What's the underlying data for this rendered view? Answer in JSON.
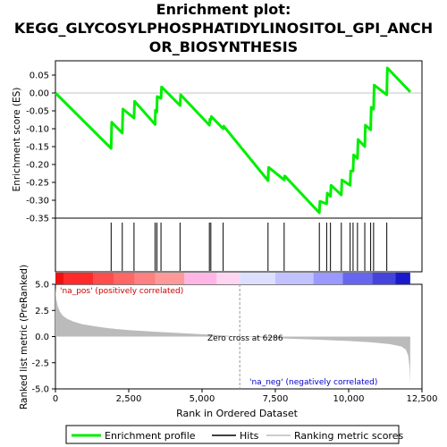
{
  "title_lines": [
    "Enrichment plot:",
    "KEGG_GLYCOSYLPHOSPHATIDYLINOSITOL_GPI_ANCH",
    "OR_BIOSYNTHESIS"
  ],
  "colors": {
    "enrichment_line": "#00ee00",
    "hit_line": "#000000",
    "ranking_fill": "#bbbbbb",
    "zero_cross_line": "#999999",
    "pos_label": "#cc0000",
    "neg_label": "#0000cc"
  },
  "chart_data": {
    "type": "line",
    "title": "Enrichment plot: KEGG_GLYCOSYLPHOSPHATIDYLINOSITOL_GPI_ANCHOR_BIOSYNTHESIS",
    "xlabel": "Rank in Ordered Dataset",
    "xlim": [
      0,
      12500
    ],
    "x_ticks": [
      0,
      2500,
      5000,
      7500,
      10000,
      12500
    ],
    "x_tick_labels": [
      "0",
      "2,500",
      "5,000",
      "7,500",
      "10,000",
      "12,500"
    ],
    "top_panel": {
      "ylabel": "Enrichment score (ES)",
      "ylim": [
        -0.35,
        0.09
      ],
      "y_ticks": [
        0.05,
        0.0,
        -0.05,
        -0.1,
        -0.15,
        -0.2,
        -0.25,
        -0.3,
        -0.35
      ],
      "y_tick_labels": [
        "0.05",
        "0.00",
        "-0.05",
        "-0.10",
        "-0.15",
        "-0.20",
        "-0.25",
        "-0.30",
        "-0.35"
      ],
      "series": [
        {
          "name": "Enrichment profile",
          "x": [
            0,
            1900,
            1920,
            2280,
            2300,
            2680,
            2700,
            3400,
            3410,
            3460,
            3470,
            3600,
            3620,
            4250,
            4270,
            5250,
            5270,
            5300,
            5320,
            5720,
            5740,
            7250,
            7270,
            7800,
            7820,
            9000,
            9020,
            9250,
            9270,
            9380,
            9400,
            9750,
            9770,
            10050,
            10070,
            10150,
            10170,
            10300,
            10320,
            10550,
            10570,
            10750,
            10770,
            10850,
            10870,
            11300,
            11320,
            12100
          ],
          "y": [
            0.0,
            -0.155,
            -0.082,
            -0.112,
            -0.045,
            -0.07,
            -0.023,
            -0.088,
            -0.048,
            -0.053,
            -0.01,
            -0.015,
            0.017,
            -0.035,
            -0.005,
            -0.09,
            -0.073,
            -0.075,
            -0.066,
            -0.1,
            -0.093,
            -0.245,
            -0.208,
            -0.243,
            -0.232,
            -0.335,
            -0.303,
            -0.31,
            -0.28,
            -0.289,
            -0.258,
            -0.285,
            -0.243,
            -0.258,
            -0.218,
            -0.218,
            -0.173,
            -0.183,
            -0.13,
            -0.15,
            -0.09,
            -0.103,
            -0.04,
            -0.045,
            0.022,
            -0.005,
            0.07,
            0.003
          ]
        }
      ]
    },
    "hits": [
      1900,
      2280,
      2680,
      3400,
      3460,
      3600,
      4250,
      5250,
      5300,
      5720,
      7250,
      7800,
      9000,
      9250,
      9380,
      9750,
      10050,
      10150,
      10300,
      10550,
      10750,
      10850,
      11300
    ],
    "bottom_panel": {
      "ylabel": "Ranked list metric (PreRanked)",
      "ylim": [
        -5.0,
        5.0
      ],
      "y_ticks": [
        5.0,
        2.5,
        0.0,
        -2.5,
        -5.0
      ],
      "y_tick_labels": [
        "5.0",
        "2.5",
        "0.0",
        "-2.5",
        "-5.0"
      ],
      "series": [
        {
          "name": "Ranking metric scores",
          "x": [
            0,
            30,
            80,
            150,
            250,
            400,
            600,
            900,
            1300,
            1800,
            2500,
            3500,
            4500,
            5500,
            6286,
            7000,
            8000,
            9000,
            10000,
            10800,
            11400,
            11800,
            11950,
            12030,
            12080,
            12100
          ],
          "y": [
            4.7,
            3.6,
            2.9,
            2.4,
            2.0,
            1.7,
            1.45,
            1.2,
            1.0,
            0.8,
            0.62,
            0.45,
            0.3,
            0.15,
            0.0,
            -0.1,
            -0.2,
            -0.3,
            -0.42,
            -0.56,
            -0.72,
            -0.95,
            -1.25,
            -1.8,
            -3.0,
            -4.6
          ]
        }
      ],
      "zero_cross_label": "Zero cross at 6286",
      "zero_cross": 6286,
      "pos_label": "'na_pos' (positively correlated)",
      "neg_label": "'na_neg' (negatively correlated)"
    },
    "heatmap_band": {
      "type": "heatmap",
      "segments": [
        {
          "x0": 0,
          "x1": 300,
          "color": "#ee1111"
        },
        {
          "x0": 300,
          "x1": 1300,
          "color": "#ff2a2a"
        },
        {
          "x0": 1300,
          "x1": 2000,
          "color": "#ff4d4d"
        },
        {
          "x0": 2000,
          "x1": 2700,
          "color": "#ff6666"
        },
        {
          "x0": 2700,
          "x1": 3400,
          "color": "#ff8080"
        },
        {
          "x0": 3400,
          "x1": 4400,
          "color": "#ff9999"
        },
        {
          "x0": 4400,
          "x1": 5500,
          "color": "#ffb6e6"
        },
        {
          "x0": 5500,
          "x1": 6286,
          "color": "#ffd6f2"
        },
        {
          "x0": 6286,
          "x1": 7500,
          "color": "#dedeff"
        },
        {
          "x0": 7500,
          "x1": 8800,
          "color": "#c2c2ff"
        },
        {
          "x0": 8800,
          "x1": 9800,
          "color": "#9999ff"
        },
        {
          "x0": 9800,
          "x1": 10800,
          "color": "#6666ee"
        },
        {
          "x0": 10800,
          "x1": 11600,
          "color": "#4444dd"
        },
        {
          "x0": 11600,
          "x1": 12100,
          "color": "#1a1acc"
        }
      ]
    },
    "legend": {
      "placement": "bottom",
      "entries": [
        {
          "label": "Enrichment profile",
          "color": "#00ee00"
        },
        {
          "label": "Hits",
          "color": "#000000"
        },
        {
          "label": "Ranking metric scores",
          "color": "#bbbbbb"
        }
      ]
    }
  }
}
